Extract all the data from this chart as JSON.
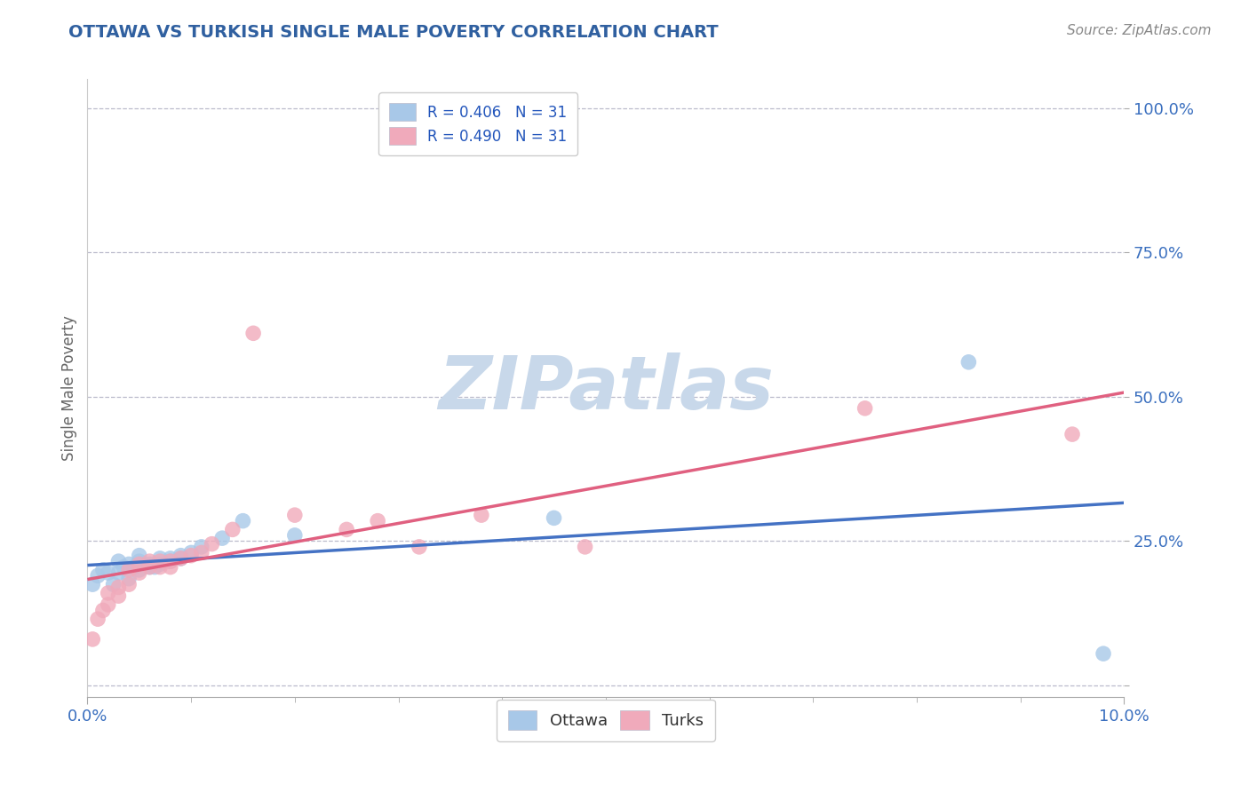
{
  "title": "OTTAWA VS TURKISH SINGLE MALE POVERTY CORRELATION CHART",
  "source": "Source: ZipAtlas.com",
  "ylabel_label": "Single Male Poverty",
  "xlim": [
    0.0,
    0.1
  ],
  "ylim": [
    -0.02,
    1.05
  ],
  "x_ticks": [
    0.0,
    0.1
  ],
  "x_ticklabels": [
    "0.0%",
    "10.0%"
  ],
  "y_ticks": [
    0.0,
    0.25,
    0.5,
    0.75,
    1.0
  ],
  "y_ticklabels": [
    "",
    "25.0%",
    "50.0%",
    "75.0%",
    "100.0%"
  ],
  "title_color": "#3060a0",
  "axis_label_color": "#666666",
  "tick_color": "#3a6fbf",
  "background_color": "#ffffff",
  "grid_color": "#bbbbcc",
  "watermark_text": "ZIPatlas",
  "watermark_color": "#c8d8ea",
  "legend_r1": "R = 0.406",
  "legend_n1": "N = 31",
  "legend_r2": "R = 0.490",
  "legend_n2": "N = 31",
  "ottawa_color": "#a8c8e8",
  "turks_color": "#f0aabb",
  "line_ottawa_color": "#4472c4",
  "line_turks_color": "#e06080",
  "ottawa_x": [
    0.0005,
    0.001,
    0.0015,
    0.002,
    0.0025,
    0.003,
    0.003,
    0.0035,
    0.004,
    0.004,
    0.0045,
    0.005,
    0.005,
    0.005,
    0.006,
    0.006,
    0.0065,
    0.007,
    0.007,
    0.008,
    0.008,
    0.009,
    0.009,
    0.01,
    0.011,
    0.013,
    0.015,
    0.02,
    0.045,
    0.085,
    0.098
  ],
  "ottawa_y": [
    0.175,
    0.19,
    0.2,
    0.195,
    0.175,
    0.195,
    0.215,
    0.205,
    0.185,
    0.21,
    0.205,
    0.2,
    0.215,
    0.225,
    0.205,
    0.21,
    0.205,
    0.21,
    0.22,
    0.215,
    0.22,
    0.225,
    0.22,
    0.23,
    0.24,
    0.255,
    0.285,
    0.26,
    0.29,
    0.56,
    0.055
  ],
  "turks_x": [
    0.0005,
    0.001,
    0.0015,
    0.002,
    0.002,
    0.003,
    0.003,
    0.004,
    0.004,
    0.005,
    0.005,
    0.006,
    0.006,
    0.007,
    0.007,
    0.008,
    0.008,
    0.009,
    0.01,
    0.011,
    0.012,
    0.014,
    0.016,
    0.02,
    0.025,
    0.028,
    0.032,
    0.038,
    0.048,
    0.075,
    0.095
  ],
  "turks_y": [
    0.08,
    0.115,
    0.13,
    0.14,
    0.16,
    0.155,
    0.17,
    0.175,
    0.2,
    0.195,
    0.21,
    0.205,
    0.215,
    0.205,
    0.215,
    0.205,
    0.215,
    0.22,
    0.225,
    0.23,
    0.245,
    0.27,
    0.61,
    0.295,
    0.27,
    0.285,
    0.24,
    0.295,
    0.24,
    0.48,
    0.435
  ],
  "figsize": [
    14.06,
    8.92
  ],
  "dpi": 100
}
